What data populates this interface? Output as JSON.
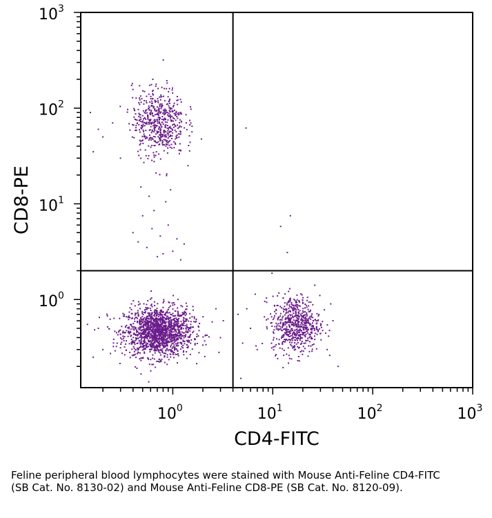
{
  "chart_data": {
    "type": "scatter",
    "title": "",
    "xlabel": "CD4-FITC",
    "ylabel": "CD8-PE",
    "x_scale": "log",
    "y_scale": "log",
    "xlim": [
      0.12,
      1000
    ],
    "ylim": [
      0.12,
      1000
    ],
    "x_ticks": [
      {
        "value": 1,
        "base": "10",
        "exp": "0"
      },
      {
        "value": 10,
        "base": "10",
        "exp": "1"
      },
      {
        "value": 100,
        "base": "10",
        "exp": "2"
      },
      {
        "value": 1000,
        "base": "10",
        "exp": "3"
      }
    ],
    "y_ticks": [
      {
        "value": 1,
        "base": "10",
        "exp": "0"
      },
      {
        "value": 10,
        "base": "10",
        "exp": "1"
      },
      {
        "value": 100,
        "base": "10",
        "exp": "2"
      },
      {
        "value": 1000,
        "base": "10",
        "exp": "3"
      }
    ],
    "quadrant_gates": {
      "x": 4.0,
      "y": 2.0
    },
    "point_color": "#6a1b8a",
    "populations": [
      {
        "cx": 0.72,
        "cy": 0.46,
        "sx": 0.17,
        "sy": 0.13,
        "count": 1550
      },
      {
        "cx": 17.0,
        "cy": 0.55,
        "sx": 0.12,
        "sy": 0.15,
        "count": 620
      },
      {
        "cx": 0.72,
        "cy": 72,
        "sx": 0.13,
        "sy": 0.18,
        "count": 560
      }
    ],
    "sparse_points": [
      [
        0.45,
        4.0
      ],
      [
        0.55,
        3.5
      ],
      [
        0.62,
        5.5
      ],
      [
        0.75,
        4.6
      ],
      [
        0.8,
        3.0
      ],
      [
        0.9,
        6.0
      ],
      [
        0.5,
        7.5
      ],
      [
        0.65,
        8.5
      ],
      [
        0.7,
        2.8
      ],
      [
        1.0,
        3.2
      ],
      [
        1.1,
        4.3
      ],
      [
        1.2,
        2.6
      ],
      [
        0.58,
        12
      ],
      [
        0.85,
        10.5
      ],
      [
        0.48,
        15
      ],
      [
        0.95,
        14
      ],
      [
        1.3,
        3.8
      ],
      [
        0.4,
        5.0
      ],
      [
        5.4,
        62
      ],
      [
        15,
        7.5
      ],
      [
        12,
        5.8
      ],
      [
        14,
        3.1
      ],
      [
        0.15,
        90
      ],
      [
        0.2,
        50
      ],
      [
        0.25,
        70
      ],
      [
        0.18,
        60
      ],
      [
        0.3,
        30
      ],
      [
        0.16,
        35
      ],
      [
        0.14,
        0.55
      ],
      [
        0.2,
        0.3
      ],
      [
        0.16,
        0.25
      ],
      [
        0.22,
        0.7
      ],
      [
        0.18,
        0.5
      ],
      [
        3.0,
        0.4
      ],
      [
        3.2,
        0.6
      ],
      [
        2.9,
        0.28
      ],
      [
        2.7,
        0.8
      ],
      [
        4.5,
        0.7
      ],
      [
        5.0,
        0.35
      ],
      [
        6.0,
        0.5
      ],
      [
        5.5,
        0.8
      ],
      [
        7.0,
        0.3
      ],
      [
        4.8,
        0.15
      ],
      [
        40,
        0.6
      ],
      [
        35,
        0.3
      ],
      [
        45,
        0.2
      ],
      [
        38,
        0.9
      ]
    ]
  },
  "caption": "Feline peripheral blood lymphocytes were stained with Mouse Anti-Feline CD4-FITC (SB Cat. No. 8130-02) and Mouse Anti-Feline CD8-PE (SB Cat. No. 8120-09)."
}
